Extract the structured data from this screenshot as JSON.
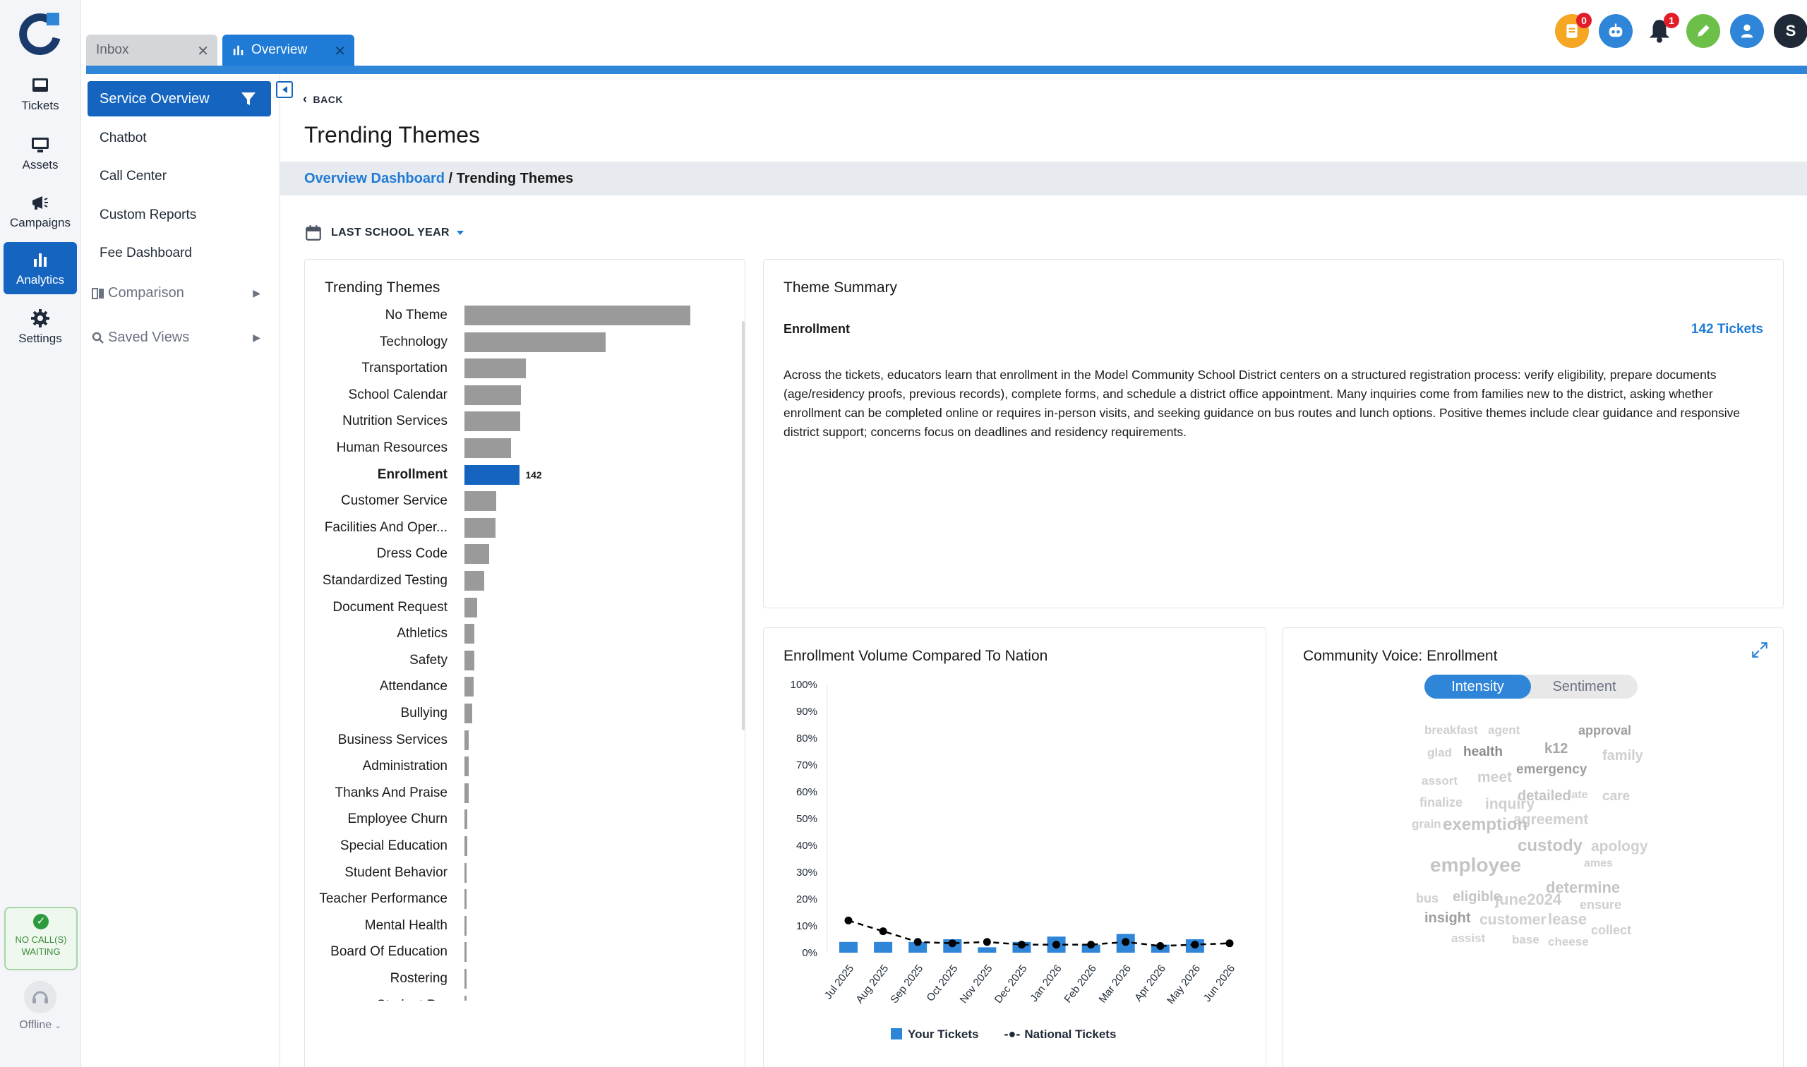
{
  "rail": {
    "items": [
      {
        "label": "Tickets",
        "icon": "inbox-tray-icon"
      },
      {
        "label": "Assets",
        "icon": "monitor-icon"
      },
      {
        "label": "Campaigns",
        "icon": "megaphone-icon"
      },
      {
        "label": "Analytics",
        "icon": "bar-chart-icon"
      },
      {
        "label": "Settings",
        "icon": "gear-icon"
      }
    ],
    "calls_status": "NO CALL(S) WAITING",
    "agent_status": "Offline"
  },
  "tabs": [
    {
      "label": "Inbox"
    },
    {
      "label": "Overview"
    }
  ],
  "top_icons": {
    "tasks_badge": "0",
    "notifications_badge": "1",
    "avatar_initial": "S"
  },
  "subnav": {
    "active": "Service Overview",
    "links": [
      "Chatbot",
      "Call Center",
      "Custom Reports",
      "Fee Dashboard"
    ],
    "comparison": "Comparison",
    "saved_views": "Saved Views"
  },
  "page": {
    "back": "BACK",
    "title": "Trending Themes",
    "breadcrumb_link": "Overview Dashboard",
    "breadcrumb_sep": " / ",
    "breadcrumb_current": "Trending Themes",
    "period": "LAST SCHOOL YEAR"
  },
  "themes": {
    "title": "Trending Themes",
    "selected": "Enrollment",
    "selected_value_label": "142",
    "items": [
      {
        "label": "No Theme",
        "value": 580
      },
      {
        "label": "Technology",
        "value": 362
      },
      {
        "label": "Transportation",
        "value": 158
      },
      {
        "label": "School Calendar",
        "value": 145
      },
      {
        "label": "Nutrition Services",
        "value": 143
      },
      {
        "label": "Human Resources",
        "value": 120
      },
      {
        "label": "Enrollment",
        "value": 142
      },
      {
        "label": "Customer Service",
        "value": 82
      },
      {
        "label": "Facilities And Oper...",
        "value": 80
      },
      {
        "label": "Dress Code",
        "value": 64
      },
      {
        "label": "Standardized Testing",
        "value": 50
      },
      {
        "label": "Document Request",
        "value": 32
      },
      {
        "label": "Athletics",
        "value": 25
      },
      {
        "label": "Safety",
        "value": 25
      },
      {
        "label": "Attendance",
        "value": 24
      },
      {
        "label": "Bullying",
        "value": 20
      },
      {
        "label": "Business Services",
        "value": 11
      },
      {
        "label": "Administration",
        "value": 11
      },
      {
        "label": "Thanks And Praise",
        "value": 10
      },
      {
        "label": "Employee Churn",
        "value": 8
      },
      {
        "label": "Special Education",
        "value": 7
      },
      {
        "label": "Student Behavior",
        "value": 6
      },
      {
        "label": "Teacher Performance",
        "value": 5
      },
      {
        "label": "Mental Health",
        "value": 4
      },
      {
        "label": "Board Of Education",
        "value": 4
      },
      {
        "label": "Rostering",
        "value": 3
      },
      {
        "label": "Student R...",
        "value": 3
      }
    ]
  },
  "summary": {
    "title": "Theme Summary",
    "theme": "Enrollment",
    "count": "142 Tickets",
    "text": "Across the tickets, educators learn that enrollment in the Model Community School District centers on a structured registration process: verify eligibility, prepare documents (age/residency proofs, previous records), complete forms, and schedule a district office appointment. Many inquiries come from families new to the district, asking whether enrollment can be completed online or requires in-person visits, and seeking guidance on bus routes and lunch options. Positive themes include clear guidance and responsive district support; concerns focus on deadlines and residency requirements."
  },
  "chart_data": {
    "type": "bar",
    "title": "Enrollment Volume Compared To Nation",
    "categories": [
      "Jul 2025",
      "Aug 2025",
      "Sep 2025",
      "Oct 2025",
      "Nov 2025",
      "Dec 2025",
      "Jan 2026",
      "Feb 2026",
      "Mar 2026",
      "Apr 2026",
      "May 2026",
      "Jun 2026"
    ],
    "series": [
      {
        "name": "Your Tickets",
        "type": "bar",
        "color": "#2f86d8",
        "values": [
          4,
          4,
          4,
          5,
          2,
          4,
          6,
          3,
          7,
          3,
          5,
          0
        ]
      },
      {
        "name": "National Tickets",
        "type": "line",
        "style": "dashed",
        "color": "#000000",
        "values": [
          12,
          8,
          4,
          3.5,
          4,
          3,
          3,
          3,
          4,
          2.5,
          3,
          3.5
        ]
      }
    ],
    "ylim": [
      0,
      100
    ],
    "yticks": [
      "100%",
      "90%",
      "80%",
      "70%",
      "60%",
      "50%",
      "40%",
      "30%",
      "20%",
      "10%",
      "0%"
    ],
    "legend": "bottom",
    "grid": false
  },
  "voice": {
    "title": "Community Voice: Enrollment",
    "toggle": [
      "Intensity",
      "Sentiment"
    ],
    "words": [
      {
        "t": "breakfast",
        "s": 17,
        "c": "#cfcfcf"
      },
      {
        "t": "agent",
        "s": 17,
        "c": "#cfcfcf"
      },
      {
        "t": "approval",
        "s": 18,
        "c": "#9e9e9e"
      },
      {
        "t": "glad",
        "s": 17,
        "c": "#cfcfcf"
      },
      {
        "t": "health",
        "s": 19,
        "c": "#8a8a8a"
      },
      {
        "t": "k12",
        "s": 20,
        "c": "#a5a5a5"
      },
      {
        "t": "family",
        "s": 20,
        "c": "#cfcfcf"
      },
      {
        "t": "emergency",
        "s": 19,
        "c": "#9e9e9e"
      },
      {
        "t": "assort",
        "s": 17,
        "c": "#cfcfcf"
      },
      {
        "t": "meet",
        "s": 21,
        "c": "#cfcfcf"
      },
      {
        "t": "detailed",
        "s": 20,
        "c": "#c4c4c4"
      },
      {
        "t": "late",
        "s": 16,
        "c": "#cfcfcf"
      },
      {
        "t": "care",
        "s": 19,
        "c": "#cfcfcf"
      },
      {
        "t": "finalize",
        "s": 18,
        "c": "#cfcfcf"
      },
      {
        "t": "inquiry",
        "s": 21,
        "c": "#cfcfcf"
      },
      {
        "t": "agreement",
        "s": 21,
        "c": "#cfcfcf"
      },
      {
        "t": "grain",
        "s": 17,
        "c": "#cfcfcf"
      },
      {
        "t": "exemption",
        "s": 24,
        "c": "#c4c4c4"
      },
      {
        "t": "custody",
        "s": 24,
        "c": "#c4c4c4"
      },
      {
        "t": "apology",
        "s": 21,
        "c": "#cfcfcf"
      },
      {
        "t": "employee",
        "s": 28,
        "c": "#c4c4c4"
      },
      {
        "t": "ames",
        "s": 16,
        "c": "#cfcfcf"
      },
      {
        "t": "determine",
        "s": 22,
        "c": "#c4c4c4"
      },
      {
        "t": "bus",
        "s": 18,
        "c": "#cfcfcf"
      },
      {
        "t": "eligible",
        "s": 20,
        "c": "#c4c4c4"
      },
      {
        "t": "june2024",
        "s": 22,
        "c": "#cfcfcf"
      },
      {
        "t": "ensure",
        "s": 18,
        "c": "#cfcfcf"
      },
      {
        "t": "insight",
        "s": 20,
        "c": "#9e9e9e"
      },
      {
        "t": "customer",
        "s": 21,
        "c": "#cfcfcf"
      },
      {
        "t": "lease",
        "s": 22,
        "c": "#cfcfcf"
      },
      {
        "t": "collect",
        "s": 18,
        "c": "#cfcfcf"
      },
      {
        "t": "assist",
        "s": 17,
        "c": "#cfcfcf"
      },
      {
        "t": "base",
        "s": 17,
        "c": "#cfcfcf"
      },
      {
        "t": "cheese",
        "s": 17,
        "c": "#cfcfcf"
      }
    ]
  },
  "colors": {
    "accent": "#1565c0",
    "accent_light": "#2f86d8",
    "bar_gray": "#9a9a9a"
  }
}
